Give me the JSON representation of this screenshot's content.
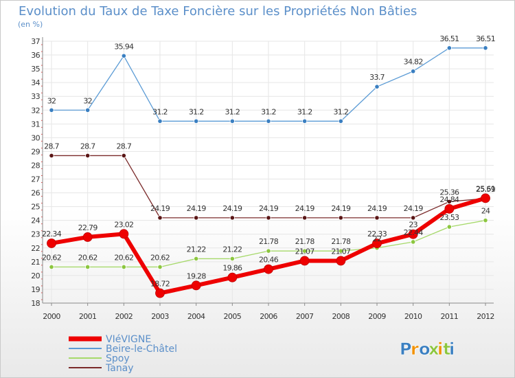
{
  "chart_data": {
    "type": "line",
    "title": "Evolution du Taux de Taxe Foncière sur les Propriétés Non Bâties",
    "unit_label": "(en %)",
    "xlabel": "",
    "ylabel": "",
    "ylim": [
      18,
      37
    ],
    "grid": true,
    "legend_position": "bottom-left",
    "categories": [
      "2000",
      "2001",
      "2002",
      "2003",
      "2004",
      "2005",
      "2006",
      "2007",
      "2008",
      "2009",
      "2010",
      "2011",
      "2012"
    ],
    "y_ticks": [
      18,
      19,
      20,
      21,
      22,
      23,
      24,
      25,
      26,
      27,
      28,
      29,
      30,
      31,
      32,
      33,
      34,
      35,
      36,
      37
    ],
    "series": [
      {
        "name": "Beire-le-Châtel",
        "color": "#5b9bd5",
        "marker": "#3a7fc1",
        "width": 1.3,
        "r": 3.2,
        "values": [
          32,
          32,
          35.94,
          31.2,
          31.2,
          31.2,
          31.2,
          31.2,
          31.2,
          33.7,
          34.82,
          36.51,
          36.51
        ],
        "labels": [
          "32",
          "32",
          "35.94",
          "31.2",
          "31.2",
          "31.2",
          "31.2",
          "31.2",
          "31.2",
          "33.7",
          "34.82",
          "36.51",
          "36.51"
        ]
      },
      {
        "name": "Tanay",
        "color": "#7a2a2a",
        "marker": "#5a1515",
        "width": 1.3,
        "r": 3.2,
        "values": [
          28.7,
          28.7,
          28.7,
          24.19,
          24.19,
          24.19,
          24.19,
          24.19,
          24.19,
          24.19,
          24.19,
          25.36,
          25.59
        ],
        "labels": [
          "28.7",
          "28.7",
          "28.7",
          "24.19",
          "24.19",
          "24.19",
          "24.19",
          "24.19",
          "24.19",
          "24.19",
          "24.19",
          "25.36",
          "25.59"
        ]
      },
      {
        "name": "Spoy",
        "color": "#a6d96a",
        "marker": "#8cc63f",
        "width": 1.3,
        "r": 3.2,
        "values": [
          20.62,
          20.62,
          20.62,
          20.62,
          21.22,
          21.22,
          21.78,
          21.78,
          21.78,
          22,
          22.44,
          23.53,
          24
        ],
        "labels": [
          "20.62",
          "20.62",
          "20.62",
          "20.62",
          "21.22",
          "21.22",
          "21.78",
          "21.78",
          "21.78",
          "22",
          "22.44",
          "23.53",
          "24"
        ]
      },
      {
        "name": "VIéVIGNE",
        "color": "#ee0000",
        "marker": "#ee0000",
        "width": 6,
        "r": 6.5,
        "values": [
          22.34,
          22.79,
          23.02,
          18.72,
          19.28,
          19.86,
          20.46,
          21.07,
          21.07,
          22.33,
          23,
          24.84,
          25.61
        ],
        "labels": [
          "22.34",
          "22.79",
          "23.02",
          "18.72",
          "19.28",
          "19.86",
          "20.46",
          "21.07",
          "21.07",
          "22.33",
          "23",
          "24.84",
          "25.61"
        ]
      }
    ],
    "legend_order": [
      "VIéVIGNE",
      "Beire-le-Châtel",
      "Spoy",
      "Tanay"
    ]
  },
  "branding": {
    "logo_text": "Proxiti",
    "logo_colors": [
      "#3a7fc1",
      "#f29100",
      "#3a7fc1",
      "#8cc63f",
      "#f29100",
      "#8cc63f",
      "#3a7fc1"
    ]
  }
}
